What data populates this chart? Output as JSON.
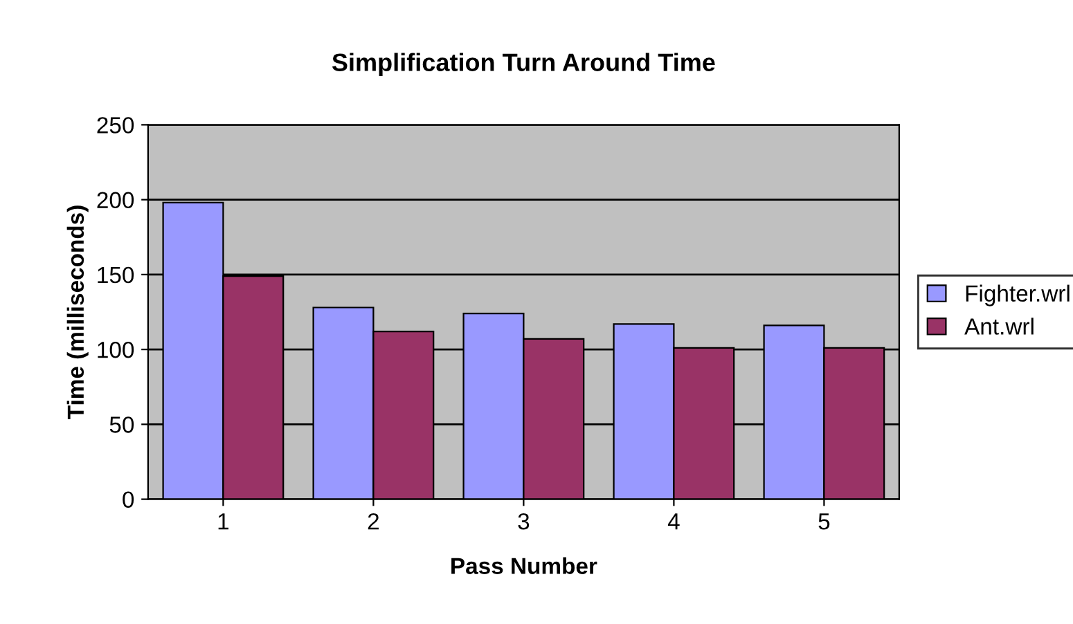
{
  "chart_data": {
    "type": "bar",
    "title": "Simplification Turn Around Time",
    "xlabel": "Pass Number",
    "ylabel": "Time (milliseconds)",
    "categories": [
      "1",
      "2",
      "3",
      "4",
      "5"
    ],
    "series": [
      {
        "name": "Fighter.wrl",
        "color": "#9999ff",
        "values": [
          198,
          128,
          124,
          117,
          116
        ]
      },
      {
        "name": "Ant.wrl",
        "color": "#993366",
        "values": [
          149,
          112,
          107,
          101,
          101
        ]
      }
    ],
    "ylim": [
      0,
      250
    ],
    "yticks": [
      0,
      50,
      100,
      150,
      200,
      250
    ],
    "grid": "y",
    "legend": "right"
  }
}
